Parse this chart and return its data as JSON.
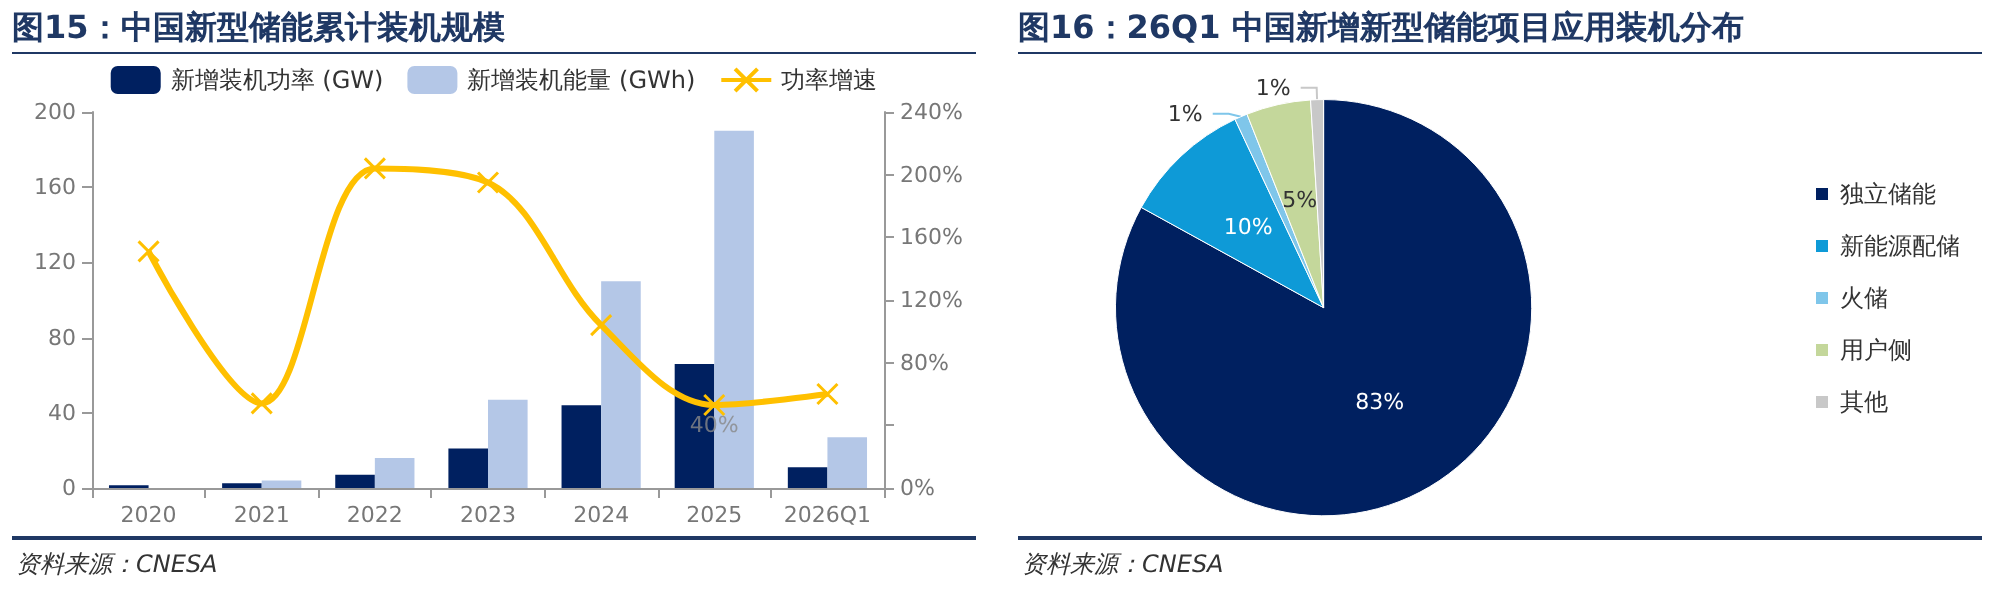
{
  "chart_data": [
    {
      "type": "bar",
      "title": "图15：中国新型储能累计装机规模",
      "categories": [
        "2020",
        "2021",
        "2022",
        "2023",
        "2024",
        "2025",
        "2026Q1"
      ],
      "series": [
        {
          "name": "新增装机功率 (GW)",
          "color": "#002060",
          "values": [
            1.5,
            2.5,
            7,
            21,
            44,
            66,
            11
          ]
        },
        {
          "name": "新增装机能量 (GWh)",
          "color": "#b4c7e7",
          "values": [
            null,
            4,
            16,
            47,
            110,
            190,
            27
          ]
        },
        {
          "name": "功率增速",
          "type": "line",
          "axis": "y2",
          "color": "#ffc000",
          "values": [
            151,
            54,
            204,
            195,
            104,
            53,
            60
          ]
        }
      ],
      "ylim": [
        0,
        200
      ],
      "yticks": [
        0,
        40,
        80,
        120,
        160,
        200
      ],
      "y2lim": [
        0,
        240
      ],
      "y2ticks": [
        {
          "value": 0,
          "label": "0%"
        },
        {
          "value": 40,
          "label": null
        },
        {
          "value": 80,
          "label": "80%"
        },
        {
          "value": 120,
          "label": "120%"
        },
        {
          "value": 160,
          "label": "160%"
        },
        {
          "value": 200,
          "label": "200%"
        },
        {
          "value": 240,
          "label": "240%"
        }
      ],
      "annotations": [
        {
          "text": "40%",
          "x": "2025",
          "y": 40
        },
        "资料来源：CNESA"
      ],
      "marker": "cross",
      "grid": false,
      "legend": "top"
    },
    {
      "type": "pie",
      "title": "图16：26Q1 中国新增新型储能项目应用装机分布",
      "categories": [
        "独立储能",
        "新能源配储",
        "火储",
        "用户侧",
        "其他"
      ],
      "values": [
        83,
        10,
        1,
        5,
        1
      ],
      "colors": [
        "#002060",
        "#0e9ad7",
        "#7fc6ea",
        "#c4d79b",
        "#c8c8c8"
      ],
      "value_labels": [
        "83%",
        "10%",
        "1%",
        "5%",
        "1%"
      ],
      "legend": "right",
      "annotations": [
        "资料来源：CNESA"
      ]
    }
  ]
}
